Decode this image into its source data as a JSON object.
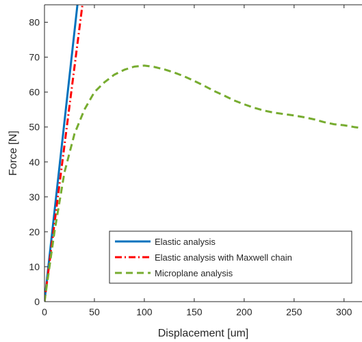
{
  "chart_data": {
    "type": "line",
    "title": "",
    "xlabel": "Displacement [um]",
    "ylabel": "Force [N]",
    "xlim": [
      0,
      318
    ],
    "ylim": [
      0,
      85
    ],
    "xticks": [
      0,
      50,
      100,
      150,
      200,
      250,
      300
    ],
    "yticks": [
      0,
      10,
      20,
      30,
      40,
      50,
      60,
      70,
      80
    ],
    "grid": false,
    "legend_position": "bottom-right",
    "series": [
      {
        "name": "Elastic analysis",
        "color": "#0072BD",
        "style": "solid",
        "points": [
          [
            0,
            0
          ],
          [
            33,
            85
          ]
        ]
      },
      {
        "name": "Elastic analysis with Maxwell chain",
        "color": "#FF0000",
        "style": "dash-dot",
        "points": [
          [
            0,
            0
          ],
          [
            38,
            85
          ]
        ]
      },
      {
        "name": "Microplane analysis",
        "color": "#77AC30",
        "style": "dashed",
        "points": [
          [
            0,
            0
          ],
          [
            10,
            20
          ],
          [
            20,
            37
          ],
          [
            30,
            48
          ],
          [
            40,
            55
          ],
          [
            50,
            60
          ],
          [
            60,
            62.8
          ],
          [
            70,
            65
          ],
          [
            80,
            66.4
          ],
          [
            90,
            67.3
          ],
          [
            100,
            67.6
          ],
          [
            110,
            67.2
          ],
          [
            120,
            66.5
          ],
          [
            130,
            65.6
          ],
          [
            140,
            64.5
          ],
          [
            150,
            63.2
          ],
          [
            160,
            61.8
          ],
          [
            170,
            60.3
          ],
          [
            180,
            59
          ],
          [
            190,
            57.6
          ],
          [
            200,
            56.5
          ],
          [
            210,
            55.5
          ],
          [
            220,
            54.7
          ],
          [
            230,
            54.1
          ],
          [
            240,
            53.7
          ],
          [
            250,
            53.3
          ],
          [
            260,
            52.8
          ],
          [
            270,
            52.2
          ],
          [
            280,
            51.4
          ],
          [
            290,
            50.8
          ],
          [
            300,
            50.5
          ],
          [
            310,
            50
          ],
          [
            318,
            49.7
          ]
        ]
      }
    ]
  }
}
